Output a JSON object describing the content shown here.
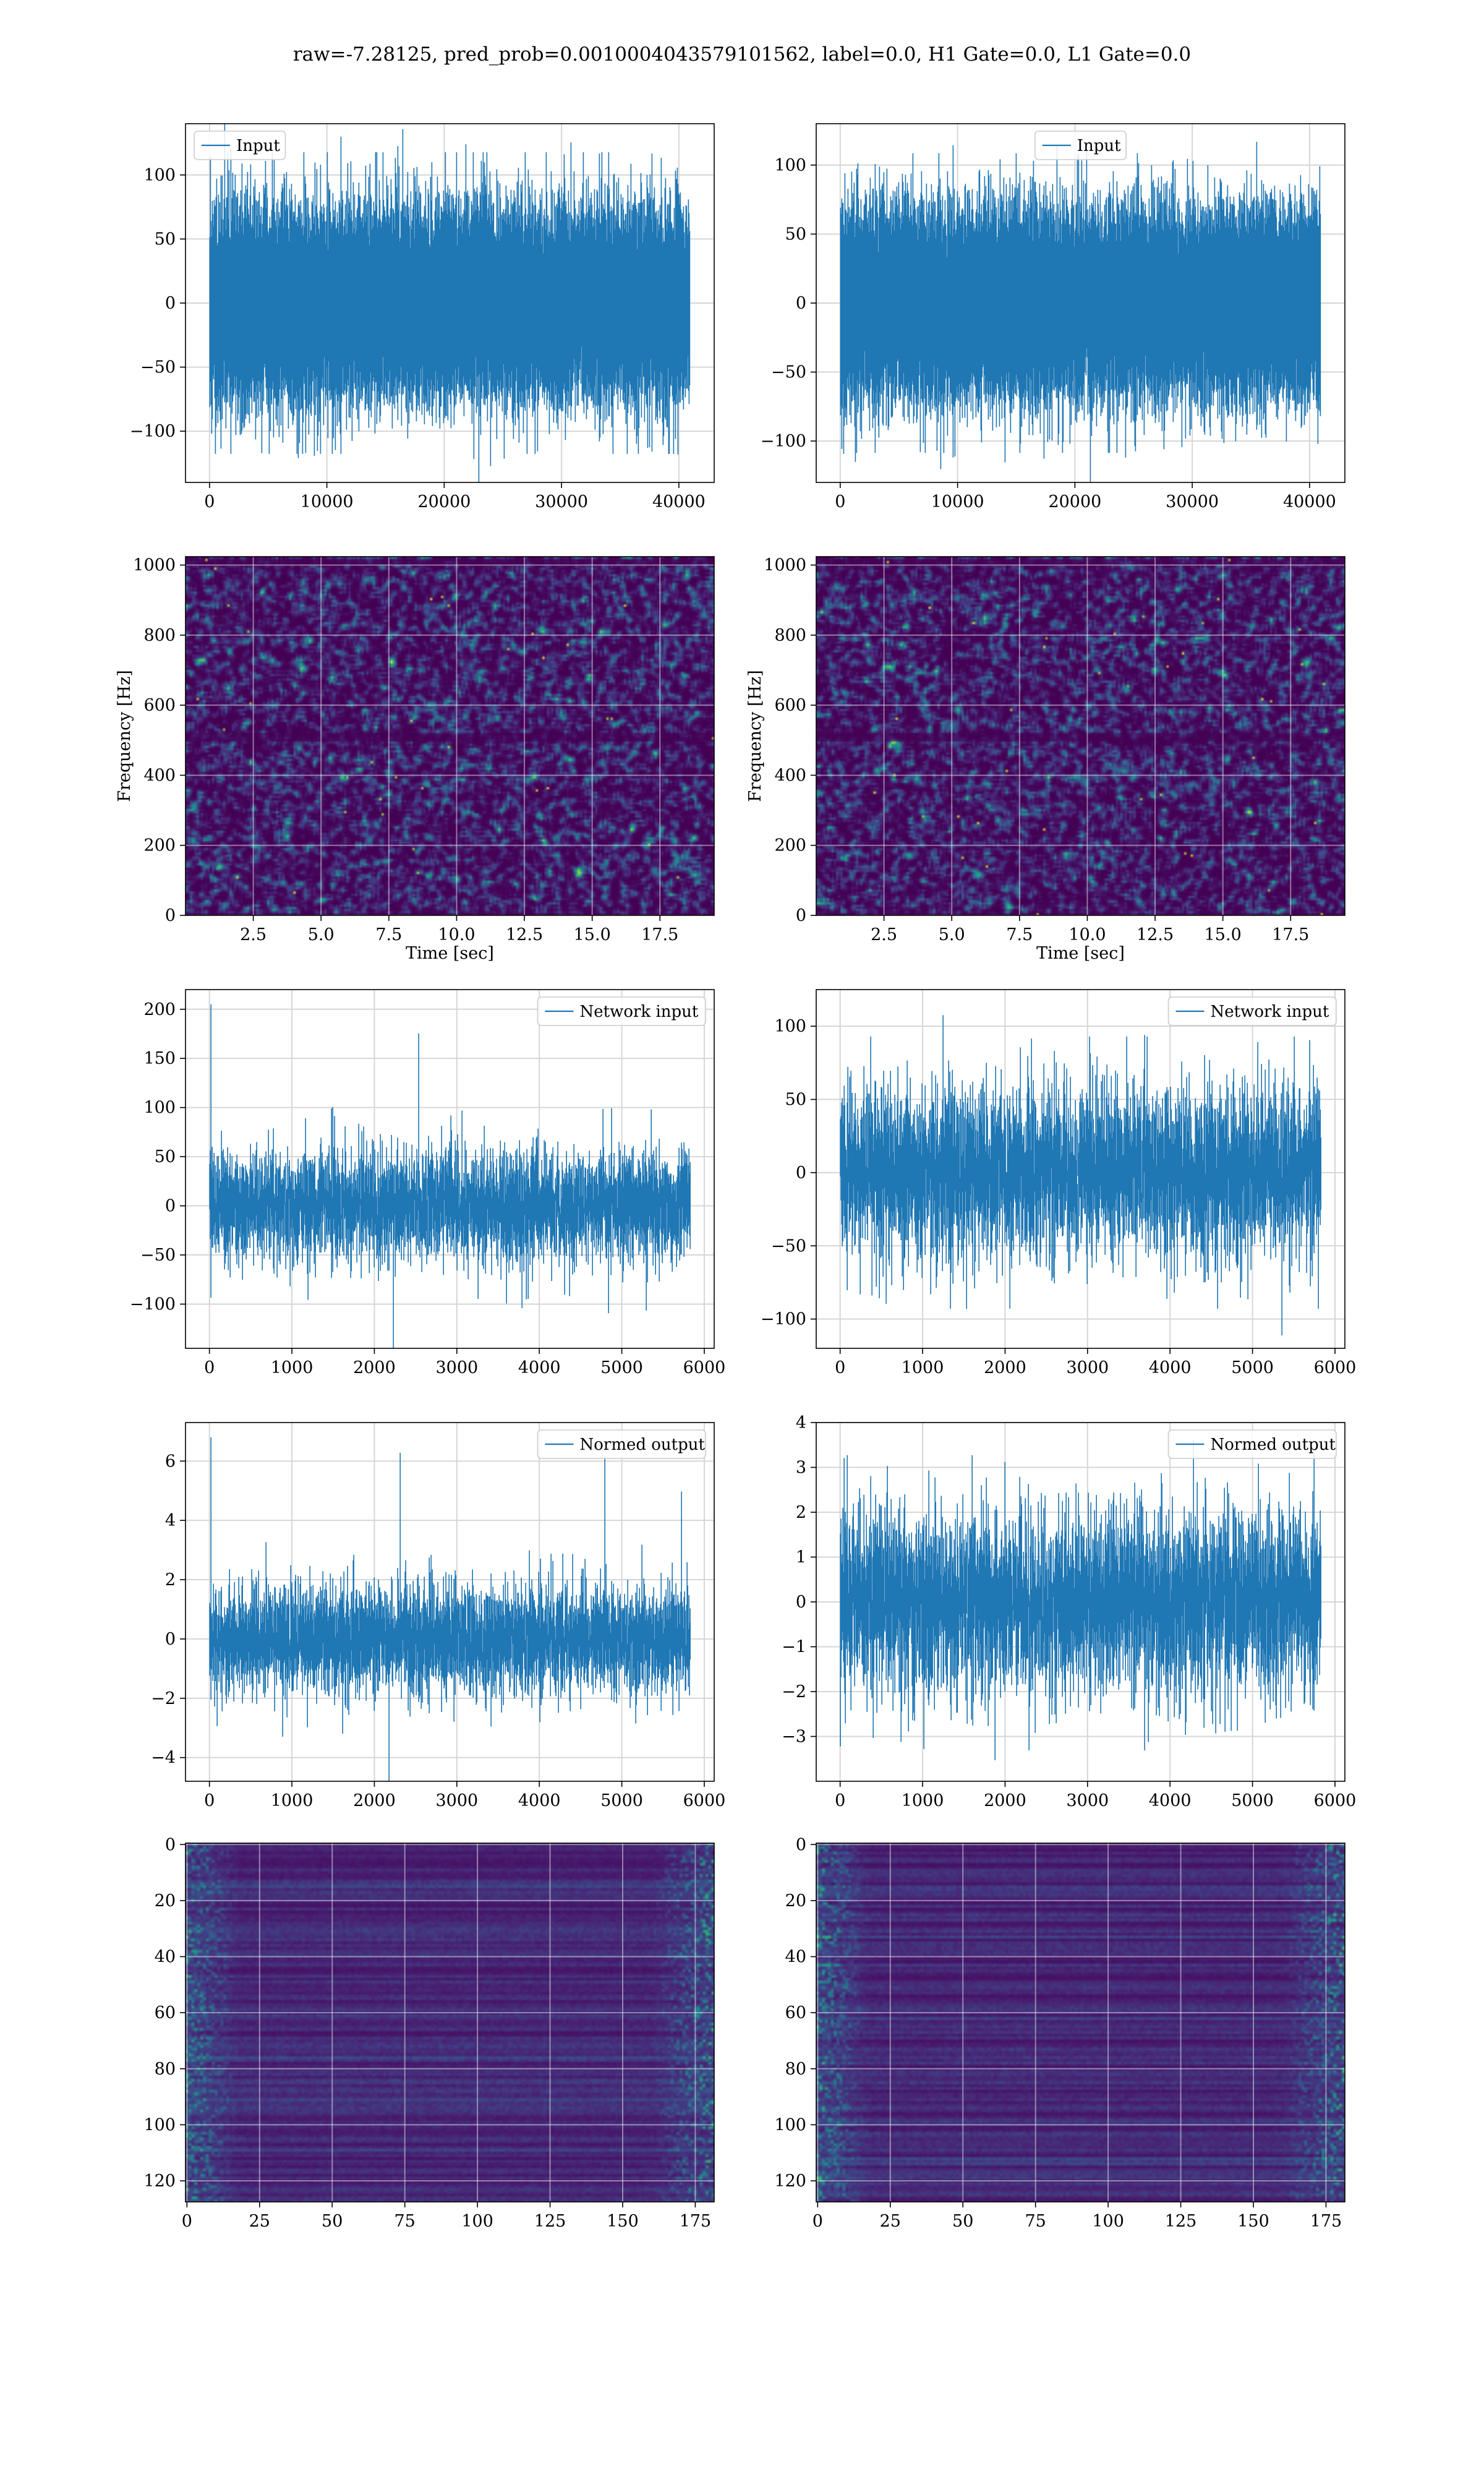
{
  "figure": {
    "suptitle": "raw=-7.28125, pred_prob=0.0010004043579101562, label=0.0, H1 Gate=0.0, L1 Gate=0.0",
    "line_color": "#1f77b4"
  },
  "chart_data": [
    {
      "id": "input-h1",
      "type": "line",
      "series_name": "Input",
      "legend_pos": "upper-left",
      "xlim": [
        -2048,
        43008
      ],
      "ylim": [
        -140,
        140
      ],
      "xticks": [
        0,
        10000,
        20000,
        30000,
        40000
      ],
      "yticks": [
        -100,
        -50,
        0,
        50,
        100
      ],
      "n": 40960,
      "envelope_p99": 75,
      "peak": 128,
      "seed": 11
    },
    {
      "id": "input-l1",
      "type": "line",
      "series_name": "Input",
      "legend_pos": "upper-center",
      "xlim": [
        -2048,
        43008
      ],
      "ylim": [
        -130,
        130
      ],
      "xticks": [
        0,
        10000,
        20000,
        30000,
        40000
      ],
      "yticks": [
        -100,
        -50,
        0,
        50,
        100
      ],
      "n": 40960,
      "envelope_p99": 70,
      "peak": 118,
      "seed": 23
    },
    {
      "id": "spectrogram-h1",
      "type": "heatmap",
      "colormap": "viridis",
      "xlabel": "Time [sec]",
      "ylabel": "Frequency [Hz]",
      "xlim": [
        0,
        19.5
      ],
      "ylim": [
        0,
        1024
      ],
      "xticks": [
        2.5,
        5.0,
        7.5,
        10.0,
        12.5,
        15.0,
        17.5
      ],
      "yticks": [
        0,
        200,
        400,
        600,
        800,
        1000
      ],
      "grid": true,
      "seed": 31
    },
    {
      "id": "spectrogram-l1",
      "type": "heatmap",
      "colormap": "viridis",
      "xlabel": "Time [sec]",
      "ylabel": "Frequency [Hz]",
      "xlim": [
        0,
        19.5
      ],
      "ylim": [
        0,
        1024
      ],
      "xticks": [
        2.5,
        5.0,
        7.5,
        10.0,
        12.5,
        15.0,
        17.5
      ],
      "yticks": [
        0,
        200,
        400,
        600,
        800,
        1000
      ],
      "grid": true,
      "seed": 37
    },
    {
      "id": "network-input-h1",
      "type": "line",
      "series_name": "Network input",
      "legend_pos": "upper-right",
      "xlim": [
        -290,
        6120
      ],
      "ylim": [
        -145,
        220
      ],
      "xticks": [
        0,
        1000,
        2000,
        3000,
        4000,
        5000,
        6000
      ],
      "yticks": [
        -100,
        -50,
        0,
        50,
        100,
        150,
        200
      ],
      "n": 5830,
      "envelope_p99": 60,
      "peak": 205,
      "spike_at": 2,
      "seed": 41
    },
    {
      "id": "network-input-l1",
      "type": "line",
      "series_name": "Network input",
      "legend_pos": "upper-right",
      "xlim": [
        -290,
        6120
      ],
      "ylim": [
        -120,
        125
      ],
      "xticks": [
        0,
        1000,
        2000,
        3000,
        4000,
        5000,
        6000
      ],
      "yticks": [
        -100,
        -50,
        0,
        50,
        100
      ],
      "n": 5830,
      "envelope_p99": 65,
      "peak": 101,
      "seed": 43
    },
    {
      "id": "normed-output-h1",
      "type": "line",
      "series_name": "Normed output",
      "legend_pos": "upper-right",
      "xlim": [
        -290,
        6120
      ],
      "ylim": [
        -4.8,
        7.3
      ],
      "xticks": [
        0,
        1000,
        2000,
        3000,
        4000,
        5000,
        6000
      ],
      "yticks": [
        -4,
        -2,
        0,
        2,
        4,
        6
      ],
      "n": 5830,
      "envelope_p99": 2.0,
      "peak": 6.8,
      "spike_at": 2,
      "seed": 53
    },
    {
      "id": "normed-output-l1",
      "type": "line",
      "series_name": "Normed output",
      "legend_pos": "upper-right",
      "xlim": [
        -290,
        6120
      ],
      "ylim": [
        -4.0,
        4.0
      ],
      "xticks": [
        0,
        1000,
        2000,
        3000,
        4000,
        5000,
        6000
      ],
      "yticks": [
        -3,
        -2,
        -1,
        0,
        1,
        2,
        3,
        4
      ],
      "n": 5830,
      "envelope_p99": 2.2,
      "peak": 3.6,
      "seed": 59
    },
    {
      "id": "features-h1",
      "type": "heatmap",
      "colormap": "viridis",
      "xlim": [
        -0.5,
        181.5
      ],
      "ylim": [
        127.5,
        -0.5
      ],
      "xticks": [
        0,
        25,
        50,
        75,
        100,
        125,
        150,
        175
      ],
      "yticks": [
        0,
        20,
        40,
        60,
        80,
        100,
        120
      ],
      "rows": 128,
      "cols": 182,
      "grid": true,
      "seed": 61
    },
    {
      "id": "features-l1",
      "type": "heatmap",
      "colormap": "viridis",
      "xlim": [
        -0.5,
        181.5
      ],
      "ylim": [
        127.5,
        -0.5
      ],
      "xticks": [
        0,
        25,
        50,
        75,
        100,
        125,
        150,
        175
      ],
      "yticks": [
        0,
        20,
        40,
        60,
        80,
        100,
        120
      ],
      "rows": 128,
      "cols": 182,
      "grid": true,
      "seed": 67
    }
  ]
}
